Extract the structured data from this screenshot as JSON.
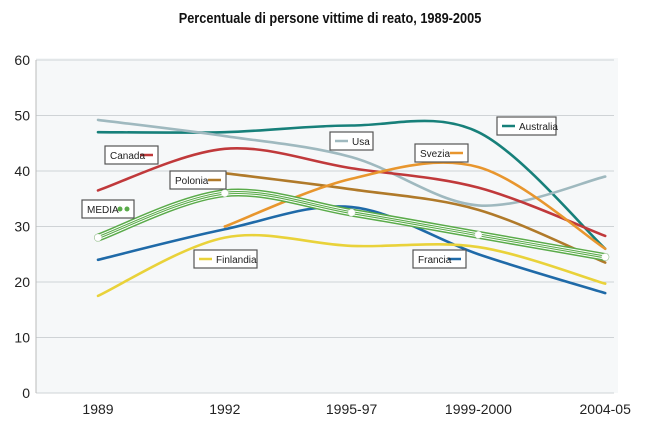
{
  "chart_data": {
    "type": "line",
    "title": "Percentuale di persone vittime di reato, 1989-2005",
    "xlabel": "",
    "ylabel": "",
    "categories": [
      "1989",
      "1992",
      "1995-97",
      "1999-2000",
      "2004-05"
    ],
    "ylim": [
      0,
      60
    ],
    "yticks": [
      0,
      10,
      20,
      30,
      40,
      50,
      60
    ],
    "grid": true,
    "legend": "inline labels",
    "series": [
      {
        "name": "Australia",
        "color": "#17807a",
        "values": [
          47,
          47,
          48.2,
          47,
          26
        ]
      },
      {
        "name": "Usa",
        "color": "#9fb9bf",
        "values": [
          49.2,
          46.3,
          42.5,
          33.8,
          39
        ]
      },
      {
        "name": "Canada",
        "color": "#c0393b",
        "values": [
          36.5,
          44,
          40.5,
          37,
          28.3
        ]
      },
      {
        "name": "Polonia",
        "color": "#b07a2a",
        "values": [
          null,
          39.6,
          36.7,
          33,
          23.5
        ]
      },
      {
        "name": "Svezia",
        "color": "#e8962e",
        "values": [
          null,
          30,
          38.6,
          40.7,
          26
        ]
      },
      {
        "name": "Francia",
        "color": "#1f6aa8",
        "values": [
          24,
          29.5,
          33.5,
          25,
          18
        ]
      },
      {
        "name": "Finlandia",
        "color": "#e9d23a",
        "values": [
          17.5,
          28,
          26.5,
          26.3,
          19.7
        ]
      },
      {
        "name": "MEDIA",
        "color": "#5aab4a",
        "values": [
          28,
          36,
          32.5,
          28.5,
          24.5
        ]
      }
    ]
  }
}
